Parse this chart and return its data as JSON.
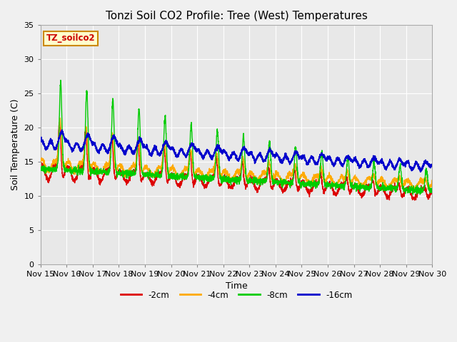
{
  "title": "Tonzi Soil CO2 Profile: Tree (West) Temperatures",
  "xlabel": "Time",
  "ylabel": "Soil Temperature (C)",
  "ylim": [
    0,
    35
  ],
  "xlim": [
    0,
    15
  ],
  "legend_label": "TZ_soilco2",
  "series_labels": [
    "-2cm",
    "-4cm",
    "-8cm",
    "-16cm"
  ],
  "series_colors": [
    "#dd0000",
    "#ffaa00",
    "#00cc00",
    "#0000cc"
  ],
  "bg_color": "#e8e8e8",
  "plot_bg": "#e8e8e8",
  "tick_labels": [
    "Nov 15",
    "Nov 16",
    "Nov 17",
    "Nov 18",
    "Nov 19",
    "Nov 20",
    "Nov 21",
    "Nov 22",
    "Nov 23",
    "Nov 24",
    "Nov 25",
    "Nov 26",
    "Nov 27",
    "Nov 28",
    "Nov 29",
    "Nov 30"
  ],
  "grid_color": "#ffffff",
  "title_fontsize": 11,
  "axis_fontsize": 8,
  "figsize": [
    6.4,
    4.8
  ],
  "dpi": 100
}
